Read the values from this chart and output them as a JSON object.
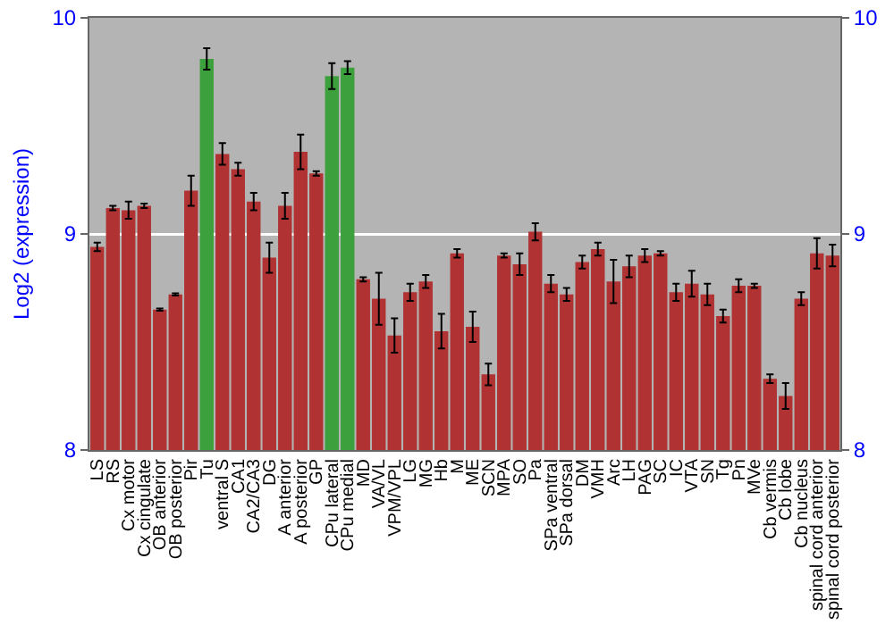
{
  "chart_data": {
    "type": "bar",
    "ylabel": "Log2 (expression)",
    "categories": [
      "LS",
      "RS",
      "Cx motor",
      "Cx cingulate",
      "OB anterior",
      "OB posterior",
      "Pir",
      "Tu",
      "ventral S",
      "CA1",
      "CA2/CA3",
      "DG",
      "A anterior",
      "A posterior",
      "GP",
      "CPu lateral",
      "CPu medial",
      "MD",
      "VA/VL",
      "VPM/VPL",
      "LG",
      "MG",
      "Hb",
      "M",
      "ME",
      "SCN",
      "MPA",
      "SO",
      "Pa",
      "SPa ventral",
      "SPa dorsal",
      "DM",
      "VMH",
      "Arc",
      "LH",
      "PAG",
      "SC",
      "IC",
      "VTA",
      "SN",
      "Tg",
      "Pn",
      "MVe",
      "Cb vermis",
      "Cb lobe",
      "Cb nucleus",
      "spinal cord anterior",
      "spinal cord posterior"
    ],
    "values": [
      8.94,
      9.12,
      9.11,
      9.13,
      8.65,
      8.72,
      9.2,
      9.81,
      9.37,
      9.3,
      9.15,
      8.89,
      9.13,
      9.38,
      9.28,
      9.73,
      9.77,
      8.79,
      8.7,
      8.53,
      8.73,
      8.78,
      8.55,
      8.91,
      8.57,
      8.35,
      8.9,
      8.86,
      9.01,
      8.77,
      8.72,
      8.87,
      8.93,
      8.78,
      8.85,
      8.9,
      8.91,
      8.73,
      8.77,
      8.72,
      8.62,
      8.76,
      8.76,
      8.33,
      8.25,
      8.7,
      8.91,
      8.9
    ],
    "errors": [
      0.02,
      0.01,
      0.04,
      0.01,
      0.005,
      0.005,
      0.07,
      0.05,
      0.05,
      0.03,
      0.04,
      0.07,
      0.06,
      0.08,
      0.01,
      0.06,
      0.03,
      0.01,
      0.12,
      0.08,
      0.04,
      0.03,
      0.08,
      0.02,
      0.07,
      0.05,
      0.01,
      0.05,
      0.04,
      0.04,
      0.03,
      0.03,
      0.03,
      0.1,
      0.05,
      0.03,
      0.01,
      0.04,
      0.06,
      0.05,
      0.03,
      0.03,
      0.01,
      0.02,
      0.06,
      0.03,
      0.07,
      0.05
    ],
    "colors": [
      "#b03232",
      "#b03232",
      "#b03232",
      "#b03232",
      "#b03232",
      "#b03232",
      "#b03232",
      "#3ca03c",
      "#b03232",
      "#b03232",
      "#b03232",
      "#b03232",
      "#b03232",
      "#b03232",
      "#b03232",
      "#3ca03c",
      "#3ca03c",
      "#b03232",
      "#b03232",
      "#b03232",
      "#b03232",
      "#b03232",
      "#b03232",
      "#b03232",
      "#b03232",
      "#b03232",
      "#b03232",
      "#b03232",
      "#b03232",
      "#b03232",
      "#b03232",
      "#b03232",
      "#b03232",
      "#b03232",
      "#b03232",
      "#b03232",
      "#b03232",
      "#b03232",
      "#b03232",
      "#b03232",
      "#b03232",
      "#b03232",
      "#b03232",
      "#b03232",
      "#b03232",
      "#b03232",
      "#b03232",
      "#b03232"
    ],
    "ylim": [
      8,
      10
    ],
    "yticks": [
      8,
      9,
      10
    ],
    "y2lim": [
      8,
      10
    ],
    "y2ticks": [
      8,
      9,
      10
    ],
    "grid": "y"
  }
}
